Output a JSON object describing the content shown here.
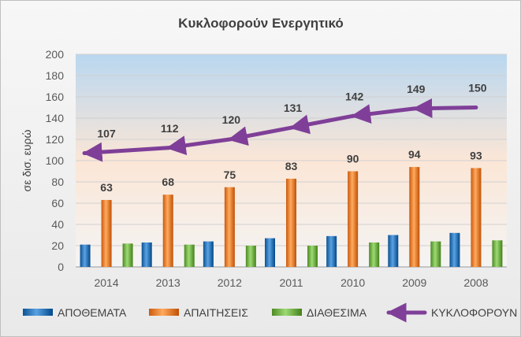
{
  "chart_data": {
    "type": "bar",
    "title": "Κυκλοφορούν Ενεργητικό",
    "ylabel": "σε δισ. ευρώ",
    "ylim": [
      0,
      200
    ],
    "ystep": 20,
    "categories": [
      "2014",
      "2013",
      "2012",
      "2011",
      "2010",
      "2009",
      "2008"
    ],
    "series": [
      {
        "name": "ΑΠΟΘΕΜΑΤΑ",
        "kind": "bar",
        "color": "#2e75b6",
        "values": [
          21,
          23,
          24,
          27,
          29,
          30,
          32
        ]
      },
      {
        "name": "ΑΠΑΙΤΗΣΕΙΣ",
        "kind": "bar",
        "color": "#ed7d31",
        "values": [
          63,
          68,
          75,
          83,
          90,
          94,
          93
        ],
        "labels": true
      },
      {
        "name": "ΔΙΑΘΕΣΙΜΑ",
        "kind": "bar",
        "color": "#70ad47",
        "values": [
          22,
          21,
          20,
          20,
          23,
          24,
          25
        ]
      },
      {
        "name": "ΚΥΚΛΟΦΟΡΟΥΝ",
        "kind": "line",
        "color": "#7f3f98",
        "values": [
          107,
          112,
          120,
          131,
          142,
          149,
          150
        ],
        "labels": true
      }
    ],
    "legend_position": "bottom",
    "grid": true
  }
}
